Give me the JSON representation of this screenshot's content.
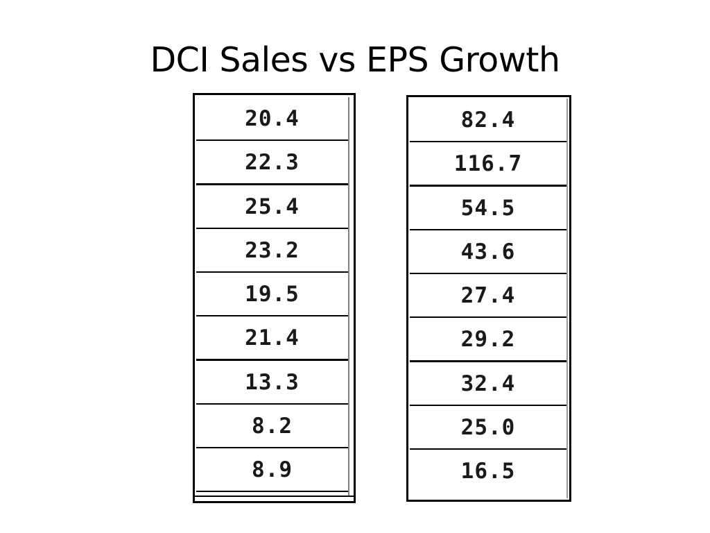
{
  "title": "DCI Sales vs EPS Growth",
  "sales_growth": [
    "20.4",
    "22.3",
    "25.4",
    "23.2",
    "19.5",
    "21.4",
    "13.3",
    "8.2",
    "8.9"
  ],
  "eps_growth": [
    "82.4",
    "116.7",
    "54.5",
    "43.6",
    "27.4",
    "29.2",
    "32.4",
    "25.0",
    "16.5"
  ]
}
